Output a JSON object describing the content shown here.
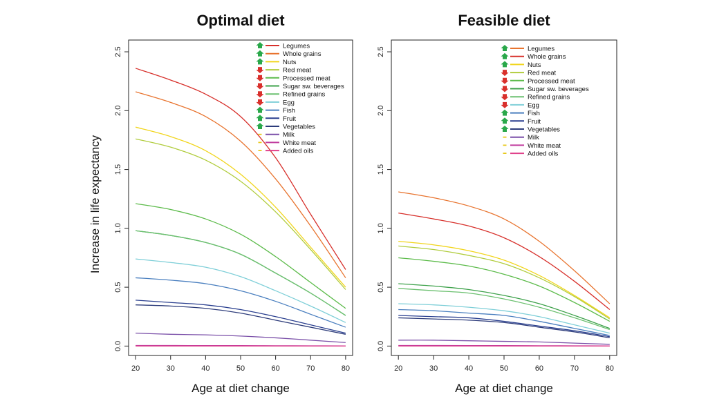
{
  "figure": {
    "ylabel": "Increase in life expectancy",
    "xlabel": "Age at diet change"
  },
  "colors": {
    "up_arrow": "#2aa84a",
    "down_arrow": "#d9302c",
    "neutral_dash": "#e8c81a"
  },
  "chart_data": [
    {
      "type": "line",
      "title": "Optimal diet",
      "xlabel": "Age at diet change",
      "ylabel": "Increase in life expectancy",
      "xlim": [
        18,
        82
      ],
      "ylim": [
        -0.08,
        2.6
      ],
      "xticks": [
        20,
        30,
        40,
        50,
        60,
        70,
        80
      ],
      "yticks": [
        0.0,
        0.5,
        1.0,
        1.5,
        2.0,
        2.5
      ],
      "ytick_labels": [
        "0.0",
        "0.5",
        "1.0",
        "1.5",
        "2.0",
        "2.5"
      ],
      "legend": "top-right",
      "x": [
        20,
        30,
        40,
        50,
        60,
        70,
        80
      ],
      "series": [
        {
          "name": "Legumes",
          "color": "#d7302b",
          "marker": "up",
          "values": [
            2.36,
            2.26,
            2.14,
            1.95,
            1.6,
            1.12,
            0.65
          ]
        },
        {
          "name": "Whole grains",
          "color": "#e8742f",
          "marker": "up",
          "values": [
            2.16,
            2.07,
            1.95,
            1.74,
            1.42,
            1.02,
            0.58
          ]
        },
        {
          "name": "Nuts",
          "color": "#f1d51c",
          "marker": "up",
          "values": [
            1.86,
            1.78,
            1.66,
            1.46,
            1.18,
            0.84,
            0.5
          ]
        },
        {
          "name": "Red meat",
          "color": "#b0cc3c",
          "marker": "down",
          "values": [
            1.76,
            1.69,
            1.58,
            1.4,
            1.14,
            0.82,
            0.48
          ]
        },
        {
          "name": "Processed meat",
          "color": "#5cbb4a",
          "marker": "down",
          "values": [
            1.21,
            1.16,
            1.08,
            0.95,
            0.76,
            0.54,
            0.32
          ]
        },
        {
          "name": "Sugar  sw. beverages",
          "color": "#3da14a",
          "marker": "down",
          "values": [
            0.98,
            0.94,
            0.88,
            0.78,
            0.62,
            0.45,
            0.26
          ]
        },
        {
          "name": "Refined grains",
          "color": "#6cc070",
          "marker": "down",
          "values": [
            0.98,
            0.94,
            0.88,
            0.78,
            0.62,
            0.45,
            0.26
          ]
        },
        {
          "name": "Egg",
          "color": "#7fcfd8",
          "marker": "down",
          "values": [
            0.74,
            0.71,
            0.67,
            0.59,
            0.47,
            0.34,
            0.2
          ]
        },
        {
          "name": "Fish",
          "color": "#4a7fbf",
          "marker": "up",
          "values": [
            0.58,
            0.56,
            0.53,
            0.47,
            0.38,
            0.27,
            0.16
          ]
        },
        {
          "name": "Fruit",
          "color": "#2a3f8f",
          "marker": "up",
          "values": [
            0.39,
            0.37,
            0.35,
            0.31,
            0.25,
            0.18,
            0.11
          ]
        },
        {
          "name": "Vegetables",
          "color": "#2c3b7a",
          "marker": "up",
          "values": [
            0.35,
            0.34,
            0.32,
            0.28,
            0.22,
            0.16,
            0.1
          ]
        },
        {
          "name": "Milk",
          "color": "#7a4fa8",
          "marker": "neutral",
          "values": [
            0.11,
            0.1,
            0.095,
            0.085,
            0.07,
            0.05,
            0.03
          ]
        },
        {
          "name": "White meat",
          "color": "#c03a9e",
          "marker": "neutral",
          "values": [
            0.005,
            0.005,
            0.004,
            0.004,
            0.003,
            0.002,
            0.001
          ]
        },
        {
          "name": "Added oils",
          "color": "#e0408a",
          "marker": "neutral",
          "values": [
            0.0,
            0.0,
            0.0,
            0.0,
            0.0,
            0.0,
            0.0
          ]
        }
      ]
    },
    {
      "type": "line",
      "title": "Feasible diet",
      "xlabel": "Age at diet change",
      "ylabel": "",
      "xlim": [
        18,
        82
      ],
      "ylim": [
        -0.08,
        2.6
      ],
      "xticks": [
        20,
        30,
        40,
        50,
        60,
        70,
        80
      ],
      "yticks": [
        0.0,
        0.5,
        1.0,
        1.5,
        2.0,
        2.5
      ],
      "ytick_labels": [
        "0.0",
        "0.5",
        "1.0",
        "1.5",
        "2.0",
        "2.5"
      ],
      "legend": "top-right",
      "x": [
        20,
        30,
        40,
        50,
        60,
        70,
        80
      ],
      "series": [
        {
          "name": "Legumes",
          "color": "#e8742f",
          "marker": "up",
          "values": [
            1.31,
            1.26,
            1.19,
            1.08,
            0.89,
            0.64,
            0.36
          ]
        },
        {
          "name": "Whole grains",
          "color": "#d7302b",
          "marker": "up",
          "values": [
            1.13,
            1.08,
            1.02,
            0.92,
            0.76,
            0.55,
            0.31
          ]
        },
        {
          "name": "Nuts",
          "color": "#f1d51c",
          "marker": "up",
          "values": [
            0.89,
            0.86,
            0.81,
            0.73,
            0.6,
            0.43,
            0.24
          ]
        },
        {
          "name": "Red meat",
          "color": "#b0cc3c",
          "marker": "down",
          "values": [
            0.85,
            0.82,
            0.77,
            0.7,
            0.58,
            0.42,
            0.23
          ]
        },
        {
          "name": "Processed meat",
          "color": "#5cbb4a",
          "marker": "down",
          "values": [
            0.75,
            0.72,
            0.68,
            0.61,
            0.51,
            0.37,
            0.21
          ]
        },
        {
          "name": "Sugar  sw. beverages",
          "color": "#3da14a",
          "marker": "down",
          "values": [
            0.53,
            0.51,
            0.48,
            0.43,
            0.36,
            0.26,
            0.15
          ]
        },
        {
          "name": "Refined grains",
          "color": "#6cc070",
          "marker": "down",
          "values": [
            0.49,
            0.47,
            0.45,
            0.4,
            0.33,
            0.24,
            0.14
          ]
        },
        {
          "name": "Egg",
          "color": "#7fcfd8",
          "marker": "down",
          "values": [
            0.36,
            0.35,
            0.33,
            0.3,
            0.25,
            0.18,
            0.11
          ]
        },
        {
          "name": "Fish",
          "color": "#4a7fbf",
          "marker": "up",
          "values": [
            0.31,
            0.3,
            0.28,
            0.26,
            0.21,
            0.15,
            0.09
          ]
        },
        {
          "name": "Fruit",
          "color": "#2a3f8f",
          "marker": "up",
          "values": [
            0.26,
            0.25,
            0.24,
            0.21,
            0.17,
            0.13,
            0.08
          ]
        },
        {
          "name": "Vegetables",
          "color": "#2c3b7a",
          "marker": "up",
          "values": [
            0.24,
            0.23,
            0.22,
            0.2,
            0.16,
            0.12,
            0.07
          ]
        },
        {
          "name": "Milk",
          "color": "#7a4fa8",
          "marker": "neutral",
          "values": [
            0.05,
            0.05,
            0.045,
            0.04,
            0.035,
            0.025,
            0.015
          ]
        },
        {
          "name": "White meat",
          "color": "#c03a9e",
          "marker": "neutral",
          "values": [
            0.005,
            0.005,
            0.004,
            0.004,
            0.003,
            0.002,
            0.001
          ]
        },
        {
          "name": "Added oils",
          "color": "#e0408a",
          "marker": "neutral",
          "values": [
            0.0,
            0.0,
            0.0,
            0.0,
            0.0,
            0.0,
            0.0
          ]
        }
      ]
    }
  ]
}
